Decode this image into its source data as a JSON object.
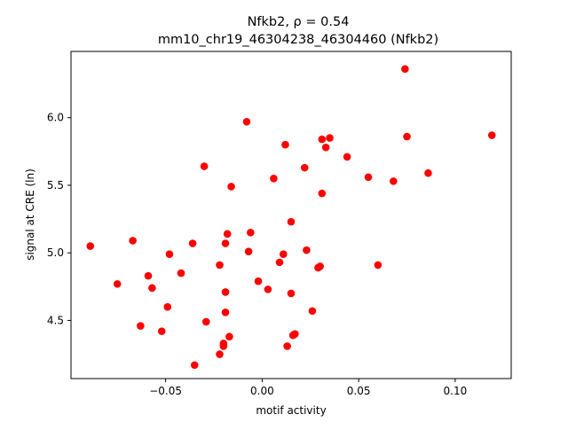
{
  "chart_data": {
    "type": "scatter",
    "title_line1": "Nfkb2, ρ = 0.54",
    "title_line2": "mm10_chr19_46304238_46304460 (Nfkb2)",
    "xlabel": "motif activity",
    "ylabel": "signal at CRE (ln)",
    "xlim": [
      -0.099,
      0.129
    ],
    "ylim": [
      4.07,
      6.49
    ],
    "x_ticks": [
      -0.05,
      0.0,
      0.05,
      0.1
    ],
    "x_tick_labels": [
      "−0.05",
      "0.00",
      "0.05",
      "0.10"
    ],
    "y_ticks": [
      4.5,
      5.0,
      5.5,
      6.0
    ],
    "y_tick_labels": [
      "4.5",
      "5.0",
      "5.5",
      "6.0"
    ],
    "grid": false,
    "marker_color": "#ff0000",
    "points": [
      {
        "x": -0.089,
        "y": 5.05
      },
      {
        "x": -0.075,
        "y": 4.77
      },
      {
        "x": -0.067,
        "y": 5.09
      },
      {
        "x": -0.063,
        "y": 4.46
      },
      {
        "x": -0.059,
        "y": 4.83
      },
      {
        "x": -0.057,
        "y": 4.74
      },
      {
        "x": -0.052,
        "y": 4.42
      },
      {
        "x": -0.049,
        "y": 4.6
      },
      {
        "x": -0.048,
        "y": 4.99
      },
      {
        "x": -0.042,
        "y": 4.85
      },
      {
        "x": -0.036,
        "y": 5.07
      },
      {
        "x": -0.035,
        "y": 4.17
      },
      {
        "x": -0.03,
        "y": 5.64
      },
      {
        "x": -0.029,
        "y": 4.49
      },
      {
        "x": -0.022,
        "y": 4.91
      },
      {
        "x": -0.022,
        "y": 4.25
      },
      {
        "x": -0.02,
        "y": 4.33
      },
      {
        "x": -0.02,
        "y": 4.31
      },
      {
        "x": -0.019,
        "y": 4.71
      },
      {
        "x": -0.019,
        "y": 4.56
      },
      {
        "x": -0.019,
        "y": 5.07
      },
      {
        "x": -0.018,
        "y": 5.14
      },
      {
        "x": -0.017,
        "y": 4.38
      },
      {
        "x": -0.016,
        "y": 5.49
      },
      {
        "x": -0.008,
        "y": 5.97
      },
      {
        "x": -0.007,
        "y": 5.01
      },
      {
        "x": -0.006,
        "y": 5.15
      },
      {
        "x": -0.002,
        "y": 4.79
      },
      {
        "x": 0.003,
        "y": 4.73
      },
      {
        "x": 0.006,
        "y": 5.55
      },
      {
        "x": 0.009,
        "y": 4.93
      },
      {
        "x": 0.011,
        "y": 4.99
      },
      {
        "x": 0.012,
        "y": 5.8
      },
      {
        "x": 0.013,
        "y": 4.31
      },
      {
        "x": 0.015,
        "y": 4.7
      },
      {
        "x": 0.015,
        "y": 5.23
      },
      {
        "x": 0.016,
        "y": 4.39
      },
      {
        "x": 0.017,
        "y": 4.4
      },
      {
        "x": 0.022,
        "y": 5.63
      },
      {
        "x": 0.023,
        "y": 5.02
      },
      {
        "x": 0.026,
        "y": 4.57
      },
      {
        "x": 0.029,
        "y": 4.89
      },
      {
        "x": 0.03,
        "y": 4.9
      },
      {
        "x": 0.031,
        "y": 5.84
      },
      {
        "x": 0.031,
        "y": 5.44
      },
      {
        "x": 0.033,
        "y": 5.78
      },
      {
        "x": 0.035,
        "y": 5.85
      },
      {
        "x": 0.044,
        "y": 5.71
      },
      {
        "x": 0.055,
        "y": 5.56
      },
      {
        "x": 0.06,
        "y": 4.91
      },
      {
        "x": 0.068,
        "y": 5.53
      },
      {
        "x": 0.074,
        "y": 6.36
      },
      {
        "x": 0.075,
        "y": 5.86
      },
      {
        "x": 0.086,
        "y": 5.59
      },
      {
        "x": 0.119,
        "y": 5.87
      }
    ]
  }
}
